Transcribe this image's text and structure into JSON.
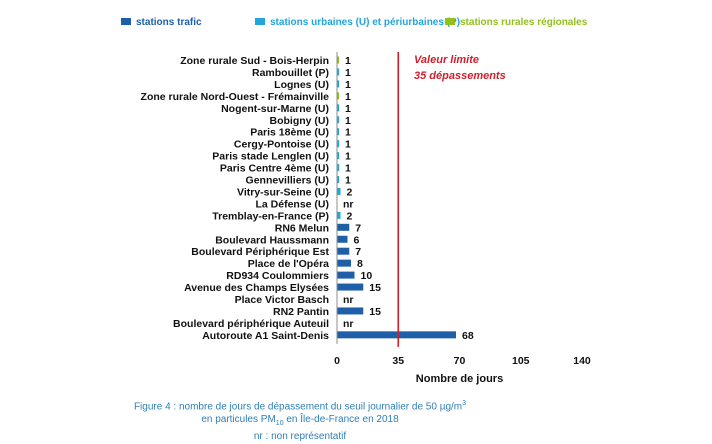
{
  "legend": [
    {
      "label": "stations trafic",
      "color": "#1f5fa8",
      "text_color": "#1f5fa8"
    },
    {
      "label": "stations urbaines (U) et périurbaines (P)",
      "color": "#22a5dd",
      "text_color": "#22a5dd"
    },
    {
      "label": "stations rurales régionales",
      "color": "#93c01f",
      "text_color": "#93c01f"
    }
  ],
  "annotation": {
    "line1": "Valeur limite",
    "line2": "35 dépassements",
    "color": "#d01f2b"
  },
  "caption": {
    "line1_pre": "Figure 4 : nombre de jours de dépassement du seuil journalier de 50 µg/m",
    "line1_sup": "3",
    "line2_pre": "en particules PM",
    "line2_sub": "10",
    "line2_post": " en Île-de-France en 2018",
    "line3": "nr : non représentatif"
  },
  "chart_data": {
    "type": "bar",
    "orientation": "horizontal",
    "xlabel": "Nombre de jours",
    "xlim": [
      0,
      140
    ],
    "xticks": [
      0,
      35,
      70,
      105,
      140
    ],
    "limit_value": 35,
    "grid": false,
    "legend_position": "top",
    "bars": [
      {
        "category": "Zone rurale Sud - Bois-Herpin",
        "value": 1,
        "label": "1",
        "group": "rural"
      },
      {
        "category": "Rambouillet (P)",
        "value": 1,
        "label": "1",
        "group": "urban"
      },
      {
        "category": "Lognes (U)",
        "value": 1,
        "label": "1",
        "group": "urban"
      },
      {
        "category": "Zone rurale Nord-Ouest - Frémainville",
        "value": 1,
        "label": "1",
        "group": "rural"
      },
      {
        "category": "Nogent-sur-Marne (U)",
        "value": 1,
        "label": "1",
        "group": "urban"
      },
      {
        "category": "Bobigny (U)",
        "value": 1,
        "label": "1",
        "group": "urban"
      },
      {
        "category": "Paris 18ème (U)",
        "value": 1,
        "label": "1",
        "group": "urban"
      },
      {
        "category": "Cergy-Pontoise (U)",
        "value": 1,
        "label": "1",
        "group": "urban"
      },
      {
        "category": "Paris stade Lenglen (U)",
        "value": 1,
        "label": "1",
        "group": "urban"
      },
      {
        "category": "Paris Centre 4ème (U)",
        "value": 1,
        "label": "1",
        "group": "urban"
      },
      {
        "category": "Gennevilliers (U)",
        "value": 1,
        "label": "1",
        "group": "urban"
      },
      {
        "category": "Vitry-sur-Seine (U)",
        "value": 2,
        "label": "2",
        "group": "urban"
      },
      {
        "category": "La Défense (U)",
        "value": null,
        "label": "nr",
        "group": "urban"
      },
      {
        "category": "Tremblay-en-France (P)",
        "value": 2,
        "label": "2",
        "group": "urban"
      },
      {
        "category": "RN6 Melun",
        "value": 7,
        "label": "7",
        "group": "traffic"
      },
      {
        "category": "Boulevard Haussmann",
        "value": 6,
        "label": "6",
        "group": "traffic"
      },
      {
        "category": "Boulevard Périphérique Est",
        "value": 7,
        "label": "7",
        "group": "traffic"
      },
      {
        "category": "Place de l'Opéra",
        "value": 8,
        "label": "8",
        "group": "traffic"
      },
      {
        "category": "RD934 Coulommiers",
        "value": 10,
        "label": "10",
        "group": "traffic"
      },
      {
        "category": "Avenue des Champs Elysées",
        "value": 15,
        "label": "15",
        "group": "traffic"
      },
      {
        "category": "Place Victor Basch",
        "value": null,
        "label": "nr",
        "group": "traffic"
      },
      {
        "category": "RN2 Pantin",
        "value": 15,
        "label": "15",
        "group": "traffic"
      },
      {
        "category": "Boulevard périphérique Auteuil",
        "value": null,
        "label": "nr",
        "group": "traffic"
      },
      {
        "category": "Autoroute A1 Saint-Denis",
        "value": 68,
        "label": "68",
        "group": "traffic"
      }
    ],
    "group_colors": {
      "traffic": "#1f5fa8",
      "urban": "#22a5dd",
      "rural": "#93c01f"
    }
  }
}
